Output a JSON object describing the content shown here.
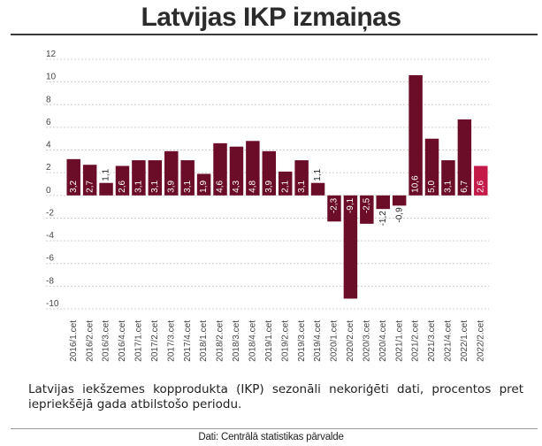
{
  "title": "Latvijas IKP izmaiņas",
  "description": "Latvijas iekšzemes kopprodukta (IKP) sezonāli nekoriģēti dati, procentos pret iepriekšējā gada atbilstošo periodu.",
  "source": "Dati: Centrālā statistikas pārvalde",
  "colors": {
    "bar": "#6b0d28",
    "highlight": "#c41a48",
    "grid": "#cfcfcf",
    "axis_text": "#444444"
  },
  "chart_data": {
    "type": "bar",
    "categories": [
      "2016/1.cet",
      "2016/2.cet",
      "2016/3.cet",
      "2016/4.cet",
      "2017/1.cet",
      "2017/2.cet",
      "2017/3.cet",
      "2017/4.cet",
      "2018/1.cet",
      "2018/2.cet",
      "2018/3.cet",
      "2018/4.cet",
      "2019/1.cet",
      "2019/2.cet",
      "2019/3.cet",
      "2019/4.cet",
      "2020/1.cet",
      "2020/2.cet",
      "2020/3.cet",
      "2020/4.cet",
      "2021/1.cet",
      "2021/2.cet",
      "2021/3.cet",
      "2021/4.cet",
      "2022/1.cet",
      "2022/2.cet"
    ],
    "values": [
      3.2,
      2.7,
      1.1,
      2.6,
      3.1,
      3.1,
      3.9,
      3.1,
      1.9,
      4.6,
      4.3,
      4.8,
      3.9,
      2.1,
      3.1,
      1.1,
      -2.3,
      -9.1,
      -2.5,
      -1.2,
      -0.9,
      10.6,
      5.0,
      3.1,
      6.7,
      2.6
    ],
    "labels": [
      "3,2",
      "2,7",
      "1,1",
      "2,6",
      "3,1",
      "3,1",
      "3,9",
      "3,1",
      "1,9",
      "4,6",
      "4,3",
      "4,8",
      "3,9",
      "2,1",
      "3,1",
      "1,1",
      "-2,3",
      "-9,1",
      "-2,5",
      "-1,2",
      "-0,9",
      "10,6",
      "5,0",
      "3,1",
      "6,7",
      "2,6"
    ],
    "highlight_index": 25,
    "yticks": [
      12,
      10,
      8,
      6,
      4,
      2,
      0,
      -2,
      -4,
      -6,
      -8,
      -10
    ],
    "ylim": [
      -10,
      12
    ],
    "grid": true
  }
}
